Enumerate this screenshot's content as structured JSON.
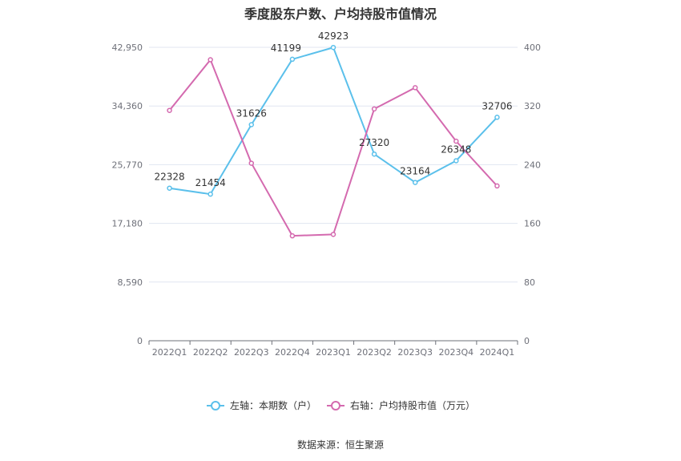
{
  "title": "季度股东户数、户均持股市值情况",
  "source": "数据来源：恒生聚源",
  "chart_data": {
    "type": "line",
    "categories": [
      "2022Q1",
      "2022Q2",
      "2022Q3",
      "2022Q4",
      "2023Q1",
      "2023Q2",
      "2023Q3",
      "2023Q4",
      "2024Q1"
    ],
    "y_left": {
      "ticks": [
        "0",
        "8,590",
        "17,180",
        "25,770",
        "34,360",
        "42,950"
      ],
      "ylim": [
        0,
        42950
      ]
    },
    "y_right": {
      "ticks": [
        "0",
        "80",
        "160",
        "240",
        "320",
        "400"
      ],
      "ylim": [
        0,
        400
      ]
    },
    "grid": true,
    "legend_position": "bottom",
    "series": [
      {
        "name": "左轴：本期数（户）",
        "axis": "left",
        "color": "#5bc0eb",
        "values": [
          22328,
          21454,
          31626,
          41199,
          42923,
          27320,
          23164,
          26348,
          32706
        ],
        "labels": [
          "22328",
          "21454",
          "31626",
          "41199",
          "42923",
          "27320",
          "23164",
          "26348",
          "32706"
        ]
      },
      {
        "name": "右轴：户均持股市值（万元）",
        "axis": "right",
        "color": "#d46aaf",
        "values": [
          314,
          383,
          242,
          143,
          145,
          316,
          345,
          272,
          211
        ]
      }
    ]
  }
}
